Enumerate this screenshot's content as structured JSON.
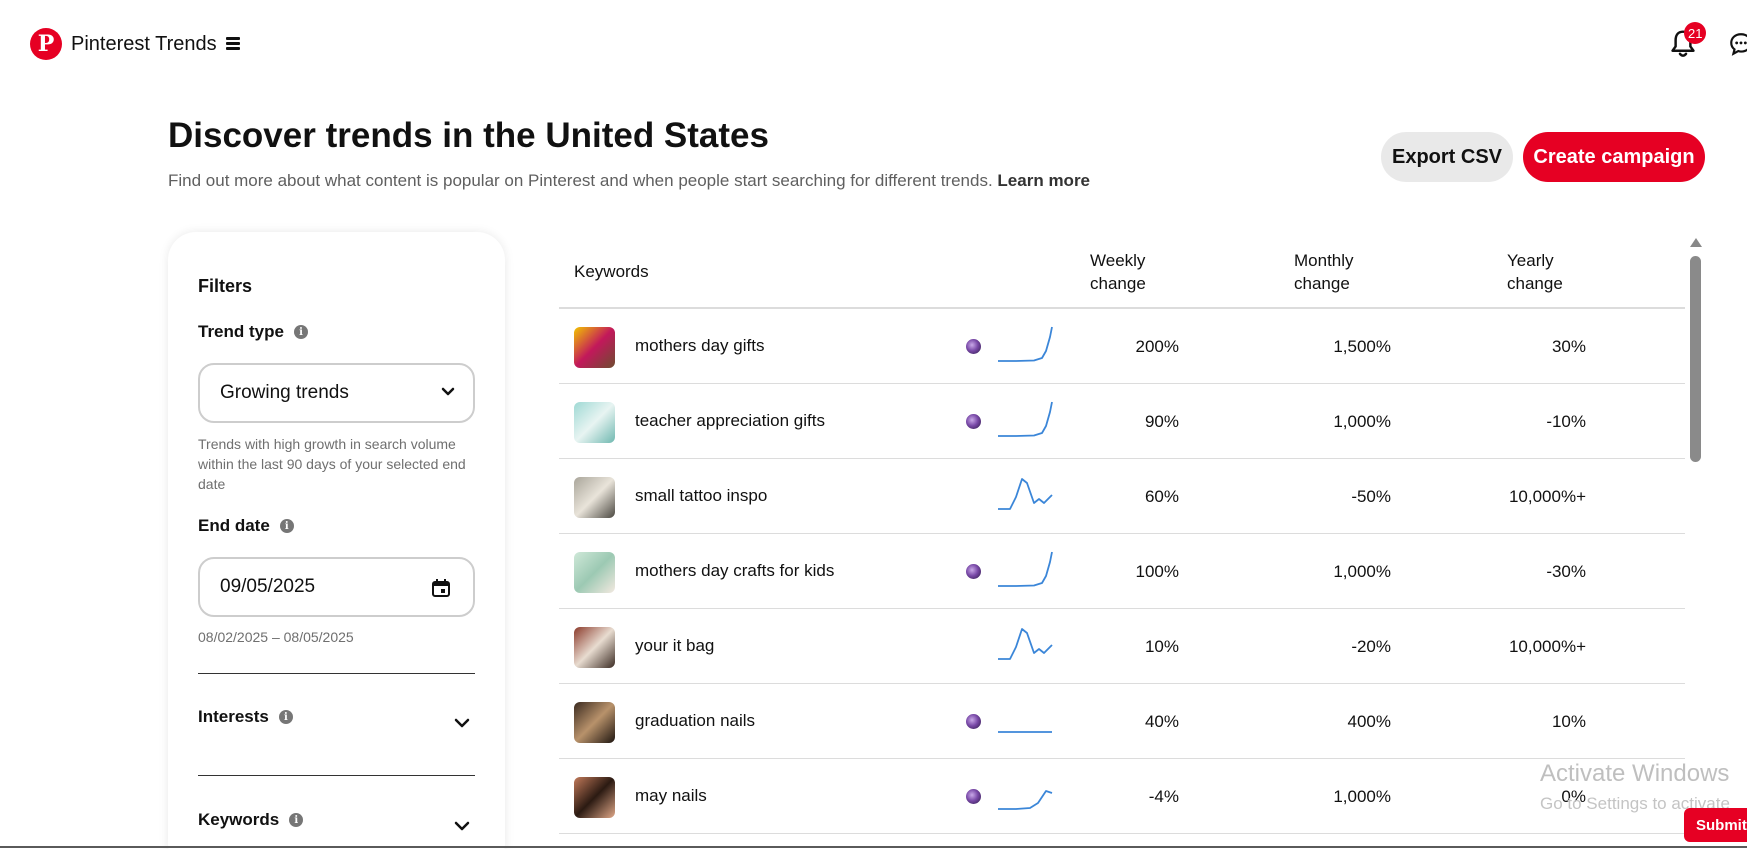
{
  "header": {
    "brand": "Pinterest Trends",
    "logo_letter": "P",
    "notification_count": "21",
    "accent_color": "#e60023"
  },
  "page": {
    "title": "Discover trends in the United States",
    "subtitle": "Find out more about what content is popular on Pinterest and when people start searching for different trends.",
    "learn_more": "Learn more",
    "export_label": "Export CSV",
    "create_label": "Create campaign"
  },
  "filters": {
    "title": "Filters",
    "trend_type_label": "Trend type",
    "trend_type_value": "Growing trends",
    "trend_type_help": "Trends with high growth in search volume within the last 90 days of your selected end date",
    "end_date_label": "End date",
    "end_date_value": "09/05/2025",
    "date_range": "08/02/2025 – 08/05/2025",
    "interests_label": "Interests",
    "keywords_label": "Keywords"
  },
  "table": {
    "col_keywords": "Keywords",
    "col_weekly_1": "Weekly",
    "col_weekly_2": "change",
    "col_monthly_1": "Monthly",
    "col_monthly_2": "change",
    "col_yearly_1": "Yearly",
    "col_yearly_2": "change",
    "rows": [
      {
        "keyword": "mothers day gifts",
        "weekly": "200%",
        "monthly": "1,500%",
        "yearly": "30%",
        "predicted": true,
        "trend": "spike-end"
      },
      {
        "keyword": "teacher appreciation gifts",
        "weekly": "90%",
        "monthly": "1,000%",
        "yearly": "-10%",
        "predicted": true,
        "trend": "spike-end"
      },
      {
        "keyword": "small tattoo inspo",
        "weekly": "60%",
        "monthly": "-50%",
        "yearly": "10,000%+",
        "predicted": false,
        "trend": "peak-mid"
      },
      {
        "keyword": "mothers day crafts for kids",
        "weekly": "100%",
        "monthly": "1,000%",
        "yearly": "-30%",
        "predicted": true,
        "trend": "spike-end"
      },
      {
        "keyword": "your it bag",
        "weekly": "10%",
        "monthly": "-20%",
        "yearly": "10,000%+",
        "predicted": false,
        "trend": "peak-mid"
      },
      {
        "keyword": "graduation nails",
        "weekly": "40%",
        "monthly": "400%",
        "yearly": "10%",
        "predicted": true,
        "trend": "flat"
      },
      {
        "keyword": "may nails",
        "weekly": "-4%",
        "monthly": "1,000%",
        "yearly": "0%",
        "predicted": true,
        "trend": "rise-end"
      }
    ]
  },
  "overlay": {
    "activate_title": "Activate Windows",
    "activate_sub": "Go to Settings to activate",
    "submit_label": "Submit"
  }
}
